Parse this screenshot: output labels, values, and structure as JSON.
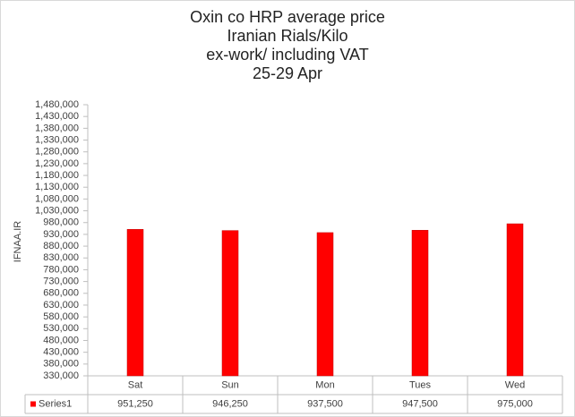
{
  "chart_data": {
    "type": "bar",
    "title_lines": [
      "Oxin co HRP average price",
      "Iranian Rials/Kilo",
      "ex-work/ including VAT",
      "25-29 Apr"
    ],
    "y_label": "IFNAA.IR",
    "categories": [
      "Sat",
      "Sun",
      "Mon",
      "Tues",
      "Wed"
    ],
    "series": [
      {
        "name": "Series1",
        "color": "#ff0000",
        "values": [
          951250,
          946250,
          937500,
          947500,
          975000
        ],
        "value_labels": [
          "951,250",
          "946,250",
          "937,500",
          "947,500",
          "975,000"
        ]
      }
    ],
    "ylim": [
      330000,
      1480000
    ],
    "yticks": [
      {
        "value": 330000,
        "label": "330,000"
      },
      {
        "value": 380000,
        "label": "380,000"
      },
      {
        "value": 430000,
        "label": "430,000"
      },
      {
        "value": 480000,
        "label": "480,000"
      },
      {
        "value": 530000,
        "label": "530,000"
      },
      {
        "value": 580000,
        "label": "580,000"
      },
      {
        "value": 630000,
        "label": "630,000"
      },
      {
        "value": 680000,
        "label": "680,000"
      },
      {
        "value": 730000,
        "label": "730,000"
      },
      {
        "value": 780000,
        "label": "780,000"
      },
      {
        "value": 830000,
        "label": "830,000"
      },
      {
        "value": 880000,
        "label": "880,000"
      },
      {
        "value": 930000,
        "label": "930,000"
      },
      {
        "value": 980000,
        "label": "980,000"
      },
      {
        "value": 1030000,
        "label": "1,030,000"
      },
      {
        "value": 1080000,
        "label": "1,080,000"
      },
      {
        "value": 1130000,
        "label": "1,130,000"
      },
      {
        "value": 1180000,
        "label": "1,180,000"
      },
      {
        "value": 1230000,
        "label": "1,230,000"
      },
      {
        "value": 1280000,
        "label": "1,280,000"
      },
      {
        "value": 1330000,
        "label": "1,330,000"
      },
      {
        "value": 1380000,
        "label": "1,380,000"
      },
      {
        "value": 1430000,
        "label": "1,430,000"
      },
      {
        "value": 1480000,
        "label": "1,480,000"
      }
    ],
    "grid": false,
    "legend": "data-table"
  }
}
